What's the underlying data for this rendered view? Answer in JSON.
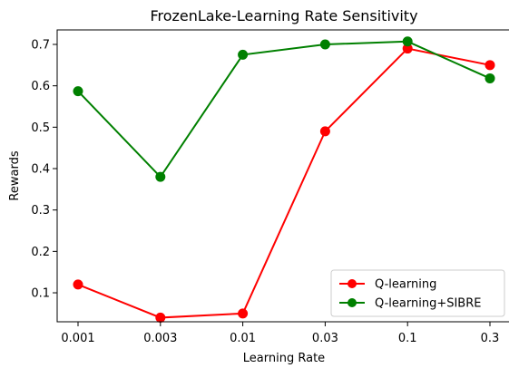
{
  "chart_data": {
    "type": "line",
    "title": "FrozenLake-Learning Rate Sensitivity",
    "xlabel": "Learning Rate",
    "ylabel": "Rewards",
    "categories": [
      "0.001",
      "0.003",
      "0.01",
      "0.03",
      "0.1",
      "0.3"
    ],
    "ylim": [
      0.03,
      0.735
    ],
    "yticks": [
      "0.1",
      "0.2",
      "0.3",
      "0.4",
      "0.5",
      "0.6",
      "0.7"
    ],
    "grid": false,
    "legend_position": "lower-right",
    "series": [
      {
        "name": "Q-learning",
        "color": "#ff0000",
        "values": [
          0.12,
          0.04,
          0.05,
          0.49,
          0.69,
          0.65
        ]
      },
      {
        "name": "Q-learning+SIBRE",
        "color": "#008000",
        "values": [
          0.587,
          0.38,
          0.675,
          0.7,
          0.707,
          0.618
        ]
      }
    ]
  }
}
